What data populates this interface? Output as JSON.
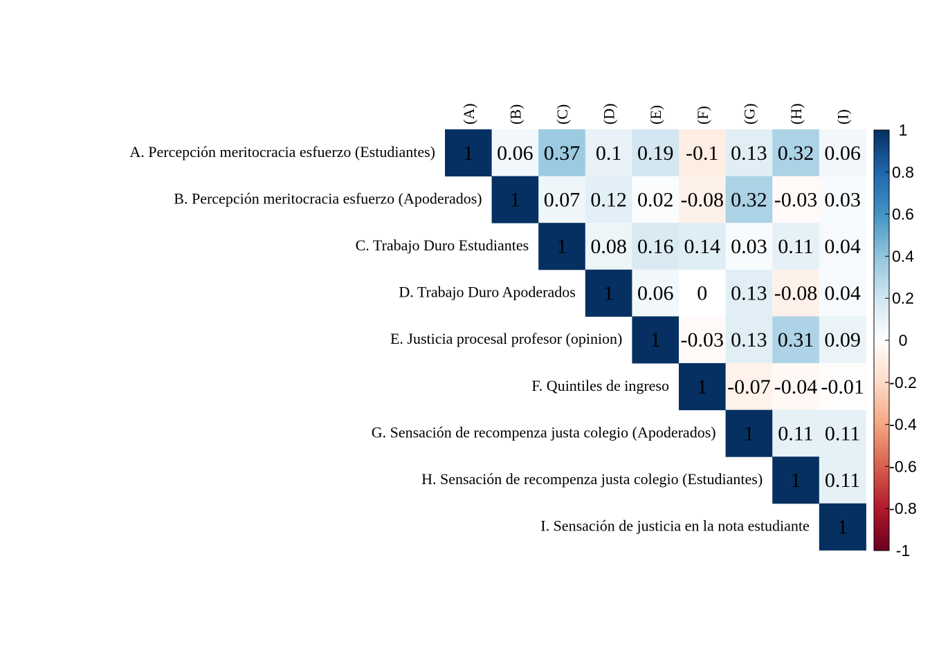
{
  "chart_data": {
    "type": "heatmap",
    "layout": "upper-triangle",
    "row_labels": [
      "A. Percepción meritocracia esfuerzo (Estudiantes)",
      "B. Percepción meritocracia esfuerzo (Apoderados)",
      "C. Trabajo Duro Estudiantes",
      "D. Trabajo Duro Apoderados",
      "E. Justicia procesal profesor (opinion)",
      "F. Quintiles de ingreso",
      "G. Sensación de recompenza justa colegio (Apoderados)",
      "H. Sensación de recompenza justa colegio (Estudiantes)",
      "I. Sensación de justicia en la nota estudiante"
    ],
    "col_labels": [
      "(A)",
      "(B)",
      "(C)",
      "(D)",
      "(E)",
      "(F)",
      "(G)",
      "(H)",
      "(I)"
    ],
    "matrix": [
      [
        1,
        0.06,
        0.37,
        0.1,
        0.19,
        -0.1,
        0.13,
        0.32,
        0.06
      ],
      [
        null,
        1,
        0.07,
        0.12,
        0.02,
        -0.08,
        0.32,
        -0.03,
        0.03
      ],
      [
        null,
        null,
        1,
        0.08,
        0.16,
        0.14,
        0.03,
        0.11,
        0.04
      ],
      [
        null,
        null,
        null,
        1,
        0.06,
        0,
        0.13,
        -0.08,
        0.04
      ],
      [
        null,
        null,
        null,
        null,
        1,
        -0.03,
        0.13,
        0.31,
        0.09
      ],
      [
        null,
        null,
        null,
        null,
        null,
        1,
        -0.07,
        -0.04,
        -0.01
      ],
      [
        null,
        null,
        null,
        null,
        null,
        null,
        1,
        0.11,
        0.11
      ],
      [
        null,
        null,
        null,
        null,
        null,
        null,
        null,
        1,
        0.11
      ],
      [
        null,
        null,
        null,
        null,
        null,
        null,
        null,
        null,
        1
      ]
    ],
    "color_scale": {
      "range": [
        -1,
        1
      ],
      "ticks": [
        "1",
        "0.8",
        "0.6",
        "0.4",
        "0.2",
        "0",
        "-0.2",
        "-0.4",
        "-0.6",
        "-0.8",
        "-1"
      ],
      "colors": [
        "#67001F",
        "#B2182B",
        "#D6604D",
        "#F4A582",
        "#FDDBC7",
        "#FFFFFF",
        "#D1E5F0",
        "#92C5DE",
        "#4393C3",
        "#2166AC",
        "#053061"
      ]
    },
    "diagonal_text_color": "#000000",
    "value_text_color": "#000000"
  }
}
